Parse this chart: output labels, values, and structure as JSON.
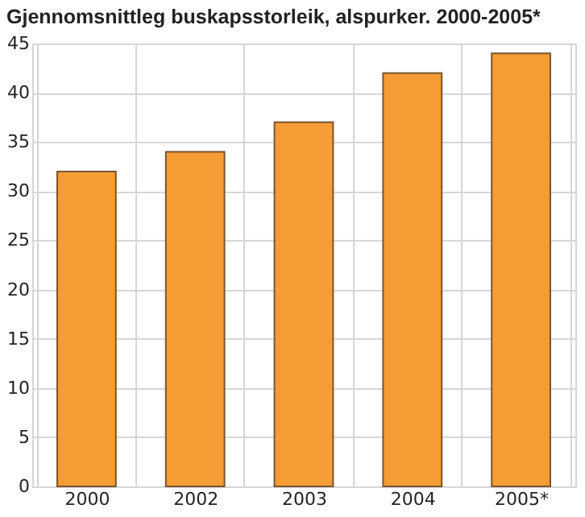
{
  "chart_data": {
    "type": "bar",
    "title": "Gjennomsnittleg buskapsstorleik, alspurker. 2000-2005*",
    "categories": [
      "2000",
      "2002",
      "2003",
      "2004",
      "2005*"
    ],
    "values": [
      32,
      34,
      37,
      42,
      44
    ],
    "color": "#f59c34",
    "ylim": [
      0,
      45
    ],
    "yticks": [
      0,
      5,
      10,
      15,
      20,
      25,
      30,
      35,
      40,
      45
    ],
    "grid": true
  }
}
